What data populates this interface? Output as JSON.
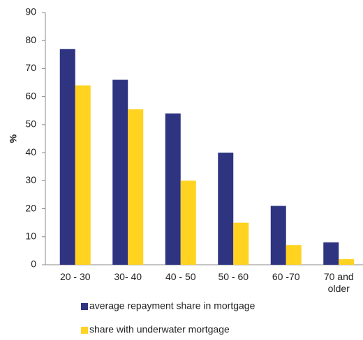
{
  "chart_data": {
    "type": "bar",
    "y_label": "%",
    "categories": [
      "20 - 30",
      "30- 40",
      "40 - 50",
      "50 - 60",
      "60 -70",
      "70 and\nolder"
    ],
    "series": [
      {
        "name": "average repayment share in mortgage",
        "color": "#2e3480",
        "values": [
          77,
          66,
          54,
          40,
          21,
          8
        ]
      },
      {
        "name": "share with underwater mortgage",
        "color": "#ffd320",
        "values": [
          64,
          55.5,
          30,
          15,
          7,
          2
        ]
      }
    ],
    "ylim": [
      0,
      90
    ],
    "yticks": [
      0,
      10,
      20,
      30,
      40,
      50,
      60,
      70,
      80,
      90
    ],
    "grid": false
  }
}
